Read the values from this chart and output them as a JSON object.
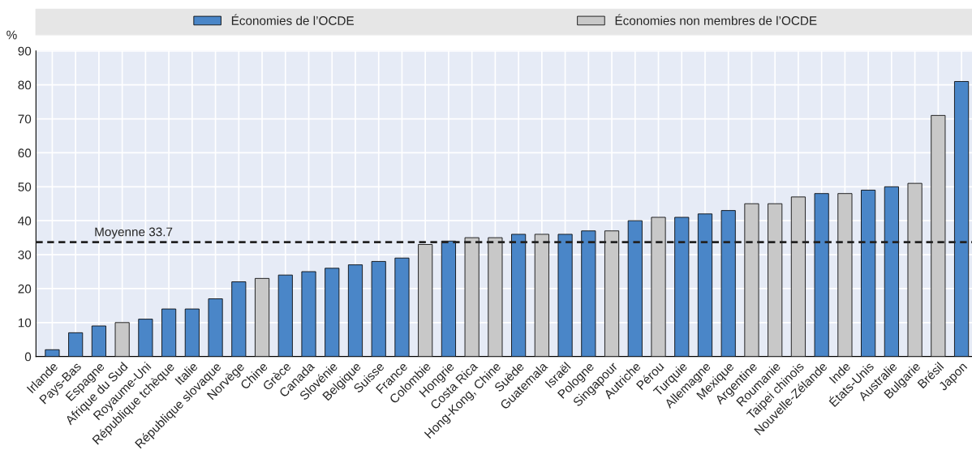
{
  "chart_data": {
    "type": "bar",
    "ylabel": "%",
    "categories": [
      "Irlande",
      "Pays-Bas",
      "Espagne",
      "Afrique du Sud",
      "Royaume-Uni",
      "République tchèque",
      "Italie",
      "République slovaque",
      "Norvège",
      "Chine",
      "Grèce",
      "Canada",
      "Slovénie",
      "Belgique",
      "Suisse",
      "France",
      "Colombie",
      "Hongrie",
      "Costa Rica",
      "Hong-Kong, Chine",
      "Suède",
      "Guatemala",
      "Israël",
      "Pologne",
      "Singapour",
      "Autriche",
      "Pérou",
      "Turquie",
      "Allemagne",
      "Mexique",
      "Argentine",
      "Roumanie",
      "Taipei chinois",
      "Nouvelle-Zélande",
      "Inde",
      "États-Unis",
      "Australie",
      "Bulgarie",
      "Brésil",
      "Japon"
    ],
    "series": [
      {
        "name": "Économies de l’OCDE",
        "color": "#4a86c8",
        "values": [
          2,
          7,
          9,
          null,
          11,
          14,
          14,
          17,
          22,
          null,
          24,
          25,
          26,
          27,
          28,
          29,
          null,
          34,
          null,
          null,
          36,
          null,
          36,
          37,
          null,
          40,
          null,
          41,
          42,
          43,
          null,
          null,
          null,
          48,
          null,
          49,
          50,
          null,
          null,
          81
        ]
      },
      {
        "name": "Économies non membres de l’OCDE",
        "color": "#c8c8c8",
        "values": [
          null,
          null,
          null,
          10,
          null,
          null,
          null,
          null,
          null,
          23,
          null,
          null,
          null,
          null,
          null,
          null,
          33,
          null,
          35,
          35,
          null,
          36,
          null,
          null,
          37,
          null,
          41,
          null,
          null,
          null,
          45,
          45,
          47,
          null,
          48,
          null,
          null,
          51,
          71,
          null
        ]
      }
    ],
    "ylim": [
      0,
      90
    ],
    "yticks": [
      0,
      10,
      20,
      30,
      40,
      50,
      60,
      70,
      80,
      90
    ],
    "grid": true,
    "legend": "top",
    "ref_lines": [
      {
        "axis": "y",
        "value": 33.7,
        "label": "Moyenne 33.7",
        "color": "#222222",
        "line_style": "dashed"
      }
    ]
  }
}
